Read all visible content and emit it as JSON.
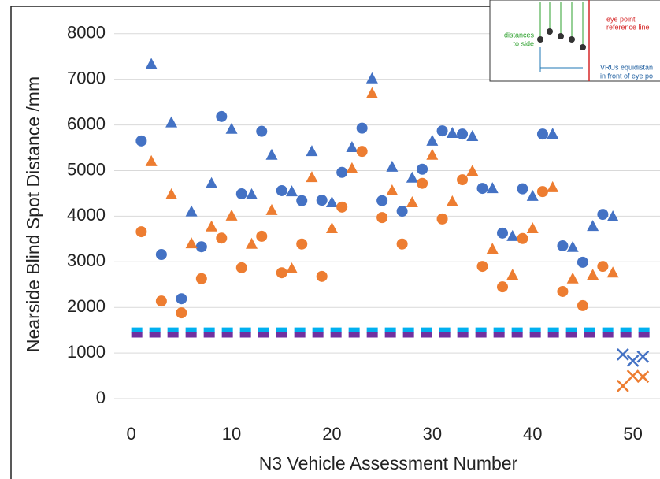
{
  "chart_data": {
    "type": "scatter",
    "y_label": "Nearside Blind Spot Distance /mm",
    "x_label": "N3 Vehicle Assessment Number",
    "xlim": [
      -1.7,
      52.7
    ],
    "xticks": [
      0,
      10,
      20,
      30,
      40,
      50
    ],
    "ylim": [
      -500,
      8600
    ],
    "yticks": [
      0,
      1000,
      2000,
      3000,
      4000,
      5000,
      6000,
      7000,
      8000
    ],
    "grid": true,
    "annotations": [
      "eye point",
      "reference line",
      "distances",
      "to side",
      "VRUs equidistan",
      "in front of eye po"
    ],
    "series": [
      {
        "color": "#4472c4",
        "marker": "circle",
        "x": [
          1,
          3,
          5,
          7,
          9,
          11,
          13,
          15,
          17,
          19,
          21,
          23,
          25,
          27,
          29,
          31,
          33,
          35,
          37,
          39,
          41,
          43,
          45,
          47
        ],
        "values": [
          5650,
          3160,
          2190,
          3330,
          6185,
          4490,
          5860,
          4560,
          4340,
          4350,
          4960,
          5930,
          4340,
          4110,
          5030,
          5870,
          5800,
          4610,
          3630,
          4600,
          5800,
          3350,
          2990,
          4040
        ]
      },
      {
        "color": "#4472c4",
        "marker": "triangle",
        "x": [
          2,
          4,
          6,
          8,
          10,
          12,
          14,
          16,
          18,
          20,
          22,
          24,
          26,
          28,
          30,
          32,
          34,
          36,
          38,
          40,
          42,
          44,
          46,
          48
        ],
        "values": [
          7330,
          6050,
          4100,
          4720,
          5910,
          4475,
          5340,
          4540,
          5420,
          4300,
          5510,
          7015,
          5080,
          4840,
          5650,
          5820,
          5750,
          4610,
          3560,
          4440,
          5800,
          3320,
          3780,
          3990
        ]
      },
      {
        "color": "#ed7d31",
        "marker": "circle",
        "x": [
          1,
          3,
          5,
          7,
          9,
          11,
          13,
          15,
          17,
          19,
          21,
          23,
          25,
          27,
          29,
          31,
          33,
          35,
          37,
          39,
          41,
          43,
          45,
          47
        ],
        "values": [
          3660,
          2140,
          1880,
          2630,
          3520,
          2870,
          3560,
          2760,
          3390,
          2680,
          4200,
          5420,
          3970,
          3390,
          4720,
          3940,
          4800,
          2900,
          2450,
          3510,
          4540,
          2350,
          2040,
          2900
        ]
      },
      {
        "color": "#ed7d31",
        "marker": "triangle",
        "x": [
          2,
          4,
          6,
          8,
          10,
          12,
          14,
          16,
          18,
          20,
          22,
          24,
          26,
          28,
          30,
          32,
          34,
          36,
          38,
          40,
          42,
          44,
          46,
          48
        ],
        "values": [
          5200,
          4475,
          3400,
          3770,
          4010,
          3390,
          4130,
          2850,
          4850,
          3730,
          5045,
          6690,
          4560,
          4300,
          5340,
          4320,
          4990,
          3280,
          2710,
          3730,
          4630,
          2630,
          2710,
          2760
        ]
      },
      {
        "color": "#4472c4",
        "marker": "x",
        "x": [
          49,
          50,
          51
        ],
        "values": [
          970,
          830,
          920
        ]
      },
      {
        "color": "#ed7d31",
        "marker": "x",
        "x": [
          49,
          50,
          51
        ],
        "values": [
          280,
          500,
          480
        ]
      },
      {
        "color": "#00b0f0",
        "marker": "dashed-line",
        "x": [
          0,
          52
        ],
        "values": [
          1500,
          1500
        ]
      },
      {
        "color": "#7030a0",
        "marker": "dashed-line",
        "x": [
          0,
          52
        ],
        "values": [
          1400,
          1400
        ]
      }
    ]
  }
}
